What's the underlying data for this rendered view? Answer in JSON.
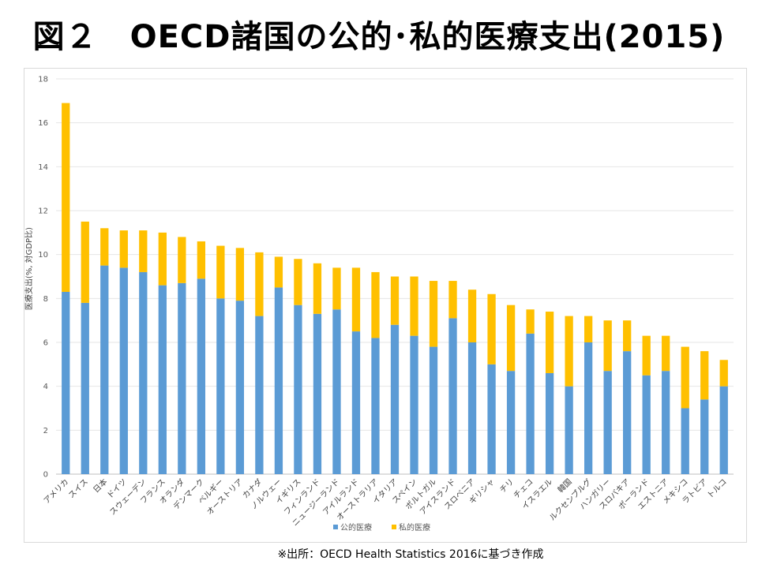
{
  "slide": {
    "title": "図２　OECD諸国の公的･私的医療支出(2015)",
    "source": "※出所：OECD Health Statistics 2016に基づき作成"
  },
  "chart_data": {
    "type": "bar",
    "stacked": true,
    "ylabel": "医療支出(%, 対GDP比)",
    "ylim": [
      0,
      18
    ],
    "yticks": [
      0,
      2,
      4,
      6,
      8,
      10,
      12,
      14,
      16,
      18
    ],
    "grid": true,
    "legend_position": "bottom",
    "categories": [
      "アメリカ",
      "スイス",
      "日本",
      "ドイツ",
      "スウェーデン",
      "フランス",
      "オランダ",
      "デンマーク",
      "ベルギー",
      "オーストリア",
      "カナダ",
      "ノルウェー",
      "イギリス",
      "フィンランド",
      "ニュージーランド",
      "アイルランド",
      "オーストラリア",
      "イタリア",
      "スペイン",
      "ポルトガル",
      "アイスランド",
      "スロベニア",
      "ギリシャ",
      "チリ",
      "チェコ",
      "イスラエル",
      "韓国",
      "ルクセンブルグ",
      "ハンガリー",
      "スロバキア",
      "ポーランド",
      "エストニア",
      "メキシコ",
      "ラトビア",
      "トルコ"
    ],
    "series": [
      {
        "name": "公的医療",
        "color": "#5b9bd5",
        "values": [
          8.3,
          7.8,
          9.5,
          9.4,
          9.2,
          8.6,
          8.7,
          8.9,
          8.0,
          7.9,
          7.2,
          8.5,
          7.7,
          7.3,
          7.5,
          6.5,
          6.2,
          6.8,
          6.3,
          5.8,
          7.1,
          6.0,
          5.0,
          4.7,
          6.4,
          4.6,
          4.0,
          6.0,
          4.7,
          5.6,
          4.5,
          4.7,
          3.0,
          3.4,
          4.0
        ]
      },
      {
        "name": "私的医療",
        "color": "#ffc000",
        "values": [
          8.6,
          3.7,
          1.7,
          1.7,
          1.9,
          2.4,
          2.1,
          1.7,
          2.4,
          2.4,
          2.9,
          1.4,
          2.1,
          2.3,
          1.9,
          2.9,
          3.0,
          2.2,
          2.7,
          3.0,
          1.7,
          2.4,
          3.2,
          3.0,
          1.1,
          2.8,
          3.2,
          1.2,
          2.3,
          1.4,
          1.8,
          1.6,
          2.8,
          2.2,
          1.2
        ]
      }
    ]
  }
}
